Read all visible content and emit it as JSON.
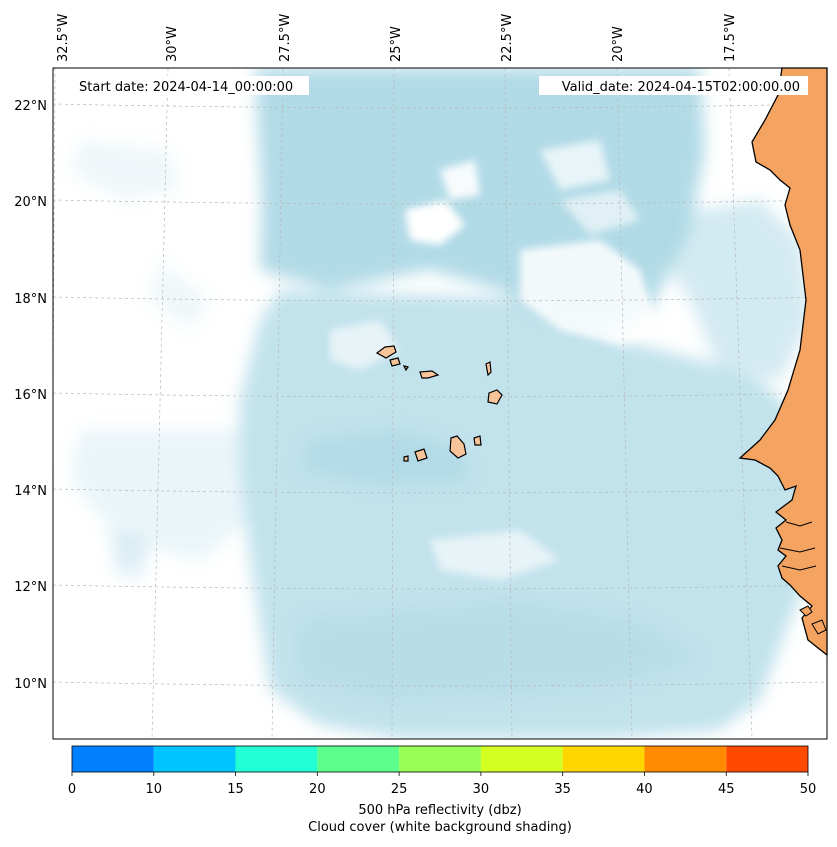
{
  "map": {
    "header": {
      "start_label": "Start date: 2024-04-14_00:00:00",
      "valid_label": "Valid_date: 2024-04-15T02:00:00.00"
    },
    "lon_labels": [
      "32.5°W",
      "30°W",
      "27.5°W",
      "25°W",
      "22.5°W",
      "20°W",
      "17.5°W"
    ],
    "lat_labels": [
      "22°N",
      "20°N",
      "18°N",
      "16°N",
      "14°N",
      "12°N",
      "10°N"
    ],
    "colors": {
      "ocean_cloud": "#add8e6",
      "land": "#f4a460",
      "island": "#f8c59a",
      "coast": "#000000",
      "grid": "#b0b0b0"
    }
  },
  "colorbar": {
    "colors": [
      "#0080ff",
      "#00c4ff",
      "#22ffd4",
      "#5cff8c",
      "#98ff54",
      "#d4ff22",
      "#ffd600",
      "#ff8c00",
      "#ff4a00"
    ],
    "tick_labels": [
      "0",
      "10",
      "15",
      "20",
      "25",
      "30",
      "35",
      "40",
      "45",
      "50"
    ],
    "label_line1": "500 hPa reflectivity (dbz)",
    "label_line2": "Cloud cover (white background shading)"
  }
}
